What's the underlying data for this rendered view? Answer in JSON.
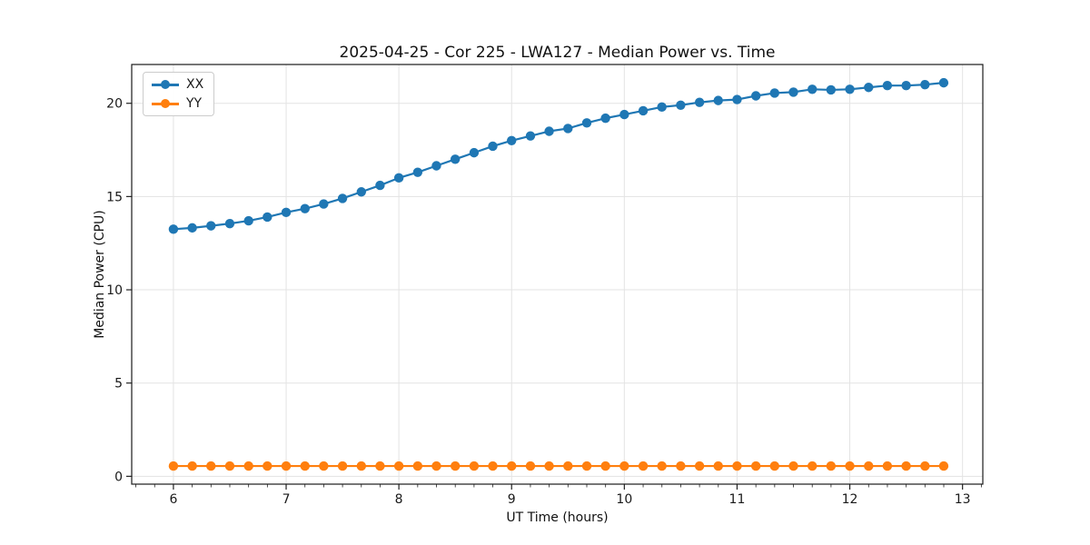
{
  "chart_data": {
    "type": "line",
    "title": "2025-04-25 - Cor 225 - LWA127 - Median Power vs. Time",
    "xlabel": "UT Time (hours)",
    "ylabel": "Median Power (CPU)",
    "xlim": [
      5.63,
      13.18
    ],
    "ylim": [
      -0.42,
      22.08
    ],
    "xticks": [
      6,
      7,
      8,
      9,
      10,
      11,
      12,
      13
    ],
    "yticks": [
      0,
      5,
      10,
      15,
      20
    ],
    "x_minor_tick_step_hours": 0.16667,
    "grid": true,
    "grid_color": "#e3e3e3",
    "background": "#ffffff",
    "legend_position": "upper left",
    "x": [
      6.0,
      6.167,
      6.333,
      6.5,
      6.667,
      6.833,
      7.0,
      7.167,
      7.333,
      7.5,
      7.667,
      7.833,
      8.0,
      8.167,
      8.333,
      8.5,
      8.667,
      8.833,
      9.0,
      9.167,
      9.333,
      9.5,
      9.667,
      9.833,
      10.0,
      10.167,
      10.333,
      10.5,
      10.667,
      10.833,
      11.0,
      11.167,
      11.333,
      11.5,
      11.667,
      11.833,
      12.0,
      12.167,
      12.333,
      12.5,
      12.667,
      12.833
    ],
    "series": [
      {
        "name": "XX",
        "color": "#1f77b4",
        "values": [
          13.25,
          13.32,
          13.43,
          13.55,
          13.7,
          13.9,
          14.15,
          14.35,
          14.6,
          14.9,
          15.25,
          15.6,
          16.0,
          16.3,
          16.65,
          17.0,
          17.35,
          17.7,
          18.0,
          18.25,
          18.5,
          18.65,
          18.95,
          19.2,
          19.4,
          19.6,
          19.8,
          19.9,
          20.05,
          20.15,
          20.2,
          20.4,
          20.55,
          20.6,
          20.75,
          20.72,
          20.75,
          20.85,
          20.95,
          20.95,
          21.0,
          21.1
        ]
      },
      {
        "name": "YY",
        "color": "#ff7f0e",
        "values": [
          0.55,
          0.55,
          0.55,
          0.55,
          0.55,
          0.55,
          0.55,
          0.55,
          0.55,
          0.55,
          0.55,
          0.55,
          0.55,
          0.55,
          0.55,
          0.55,
          0.55,
          0.55,
          0.55,
          0.55,
          0.55,
          0.55,
          0.55,
          0.55,
          0.55,
          0.55,
          0.55,
          0.55,
          0.55,
          0.55,
          0.55,
          0.55,
          0.55,
          0.55,
          0.55,
          0.55,
          0.55,
          0.55,
          0.55,
          0.55,
          0.55,
          0.55
        ]
      }
    ]
  }
}
